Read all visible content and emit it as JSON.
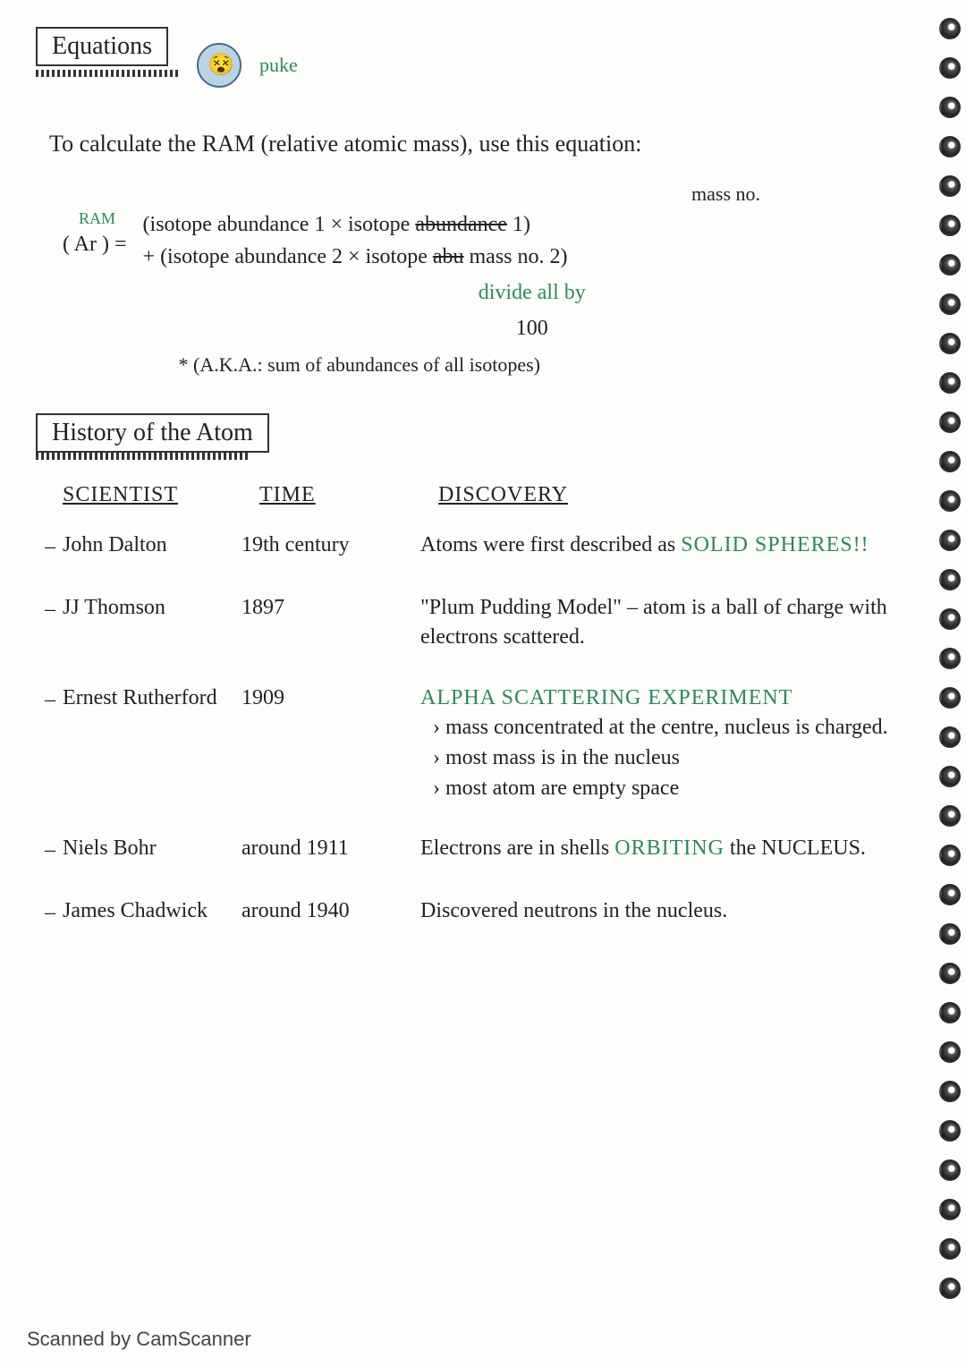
{
  "header": {
    "title": "Equations",
    "doodle_label": "puke"
  },
  "intro": "To calculate the RAM (relative atomic mass), use this equation:",
  "equation": {
    "mass_no_label": "mass no.",
    "ram_tag": "RAM",
    "ar": "( Ar )  =",
    "line1_a": "(isotope abundance 1 × isotope ",
    "line1_strike": "abundance",
    "line1_b": " 1)",
    "line2": "+ (isotope abundance 2 × isotope ",
    "line2_strike": "abu",
    "line2_b": "  mass no. 2)",
    "divide": "divide all by",
    "hundred": "100",
    "aka": "* (A.K.A.: sum of abundances of all isotopes)"
  },
  "section2": {
    "title": "History of the Atom"
  },
  "headers": {
    "col1": "SCIENTIST",
    "col2": "TIME",
    "col3": "DISCOVERY"
  },
  "rows": [
    {
      "scientist": "John Dalton",
      "time": "19th century",
      "discovery_a": "Atoms were first described as ",
      "discovery_emph": "SOLID SPHERES!!"
    },
    {
      "scientist": "JJ Thomson",
      "time": "1897",
      "discovery_a": "\"Plum Pudding Model\" – atom is a ball of charge with electrons scattered."
    },
    {
      "scientist": "Ernest Rutherford",
      "time": "1909",
      "discovery_emph": "ALPHA SCATTERING EXPERIMENT",
      "sub1": "› mass concentrated at the centre, nucleus is charged.",
      "sub2": "› most mass is in the nucleus",
      "sub3": "› most atom are empty space"
    },
    {
      "scientist": "Niels Bohr",
      "time": "around 1911",
      "discovery_a": "Electrons are in shells ",
      "discovery_emph": "ORBITING",
      "discovery_b": " the NUCLEUS."
    },
    {
      "scientist": "James Chadwick",
      "time": "around 1940",
      "discovery_a": "Discovered neutrons in the nucleus."
    }
  ],
  "footer": "Scanned by CamScanner",
  "colors": {
    "ink": "#222222",
    "accent": "#2a8a5a",
    "page": "#fdfdfb"
  }
}
